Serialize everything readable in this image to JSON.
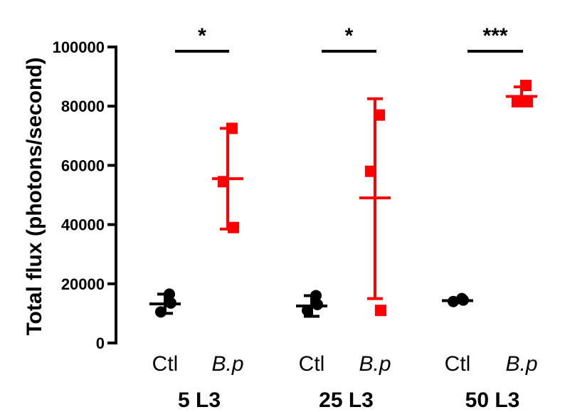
{
  "chart_data": {
    "type": "scatter",
    "ylabel": "Total flux (photons/second)",
    "xlabel": "",
    "ylim": [
      0,
      100000
    ],
    "yticks": [
      0,
      20000,
      40000,
      60000,
      80000,
      100000
    ],
    "ytick_labels": [
      "0",
      "20000",
      "40000",
      "60000",
      "80000",
      "100000"
    ],
    "groups": [
      {
        "label": "5 L3",
        "significance": "*",
        "conditions": [
          {
            "label": "Ctl",
            "italic": false,
            "color": "#000000",
            "marker": "circle",
            "points": [
              16500,
              10500,
              13500
            ],
            "mean": 13200,
            "error_low": 10000,
            "error_high": 16500
          },
          {
            "label": "B.p",
            "italic": true,
            "color": "#ff0000",
            "marker": "square",
            "points": [
              72500,
              54500,
              39000
            ],
            "mean": 55500,
            "error_low": 38500,
            "error_high": 72500
          }
        ]
      },
      {
        "label": "25 L3",
        "significance": "*",
        "conditions": [
          {
            "label": "Ctl",
            "italic": false,
            "color": "#000000",
            "marker": "circle",
            "points": [
              16000,
              11000,
              13000
            ],
            "mean": 12500,
            "error_low": 9000,
            "error_high": 16000
          },
          {
            "label": "B.p",
            "italic": true,
            "color": "#ff0000",
            "marker": "square",
            "points": [
              77000,
              58000,
              11000
            ],
            "mean": 49000,
            "error_low": 15000,
            "error_high": 82500
          }
        ]
      },
      {
        "label": "50 L3",
        "significance": "***",
        "conditions": [
          {
            "label": "Ctl",
            "italic": false,
            "color": "#000000",
            "marker": "circle",
            "points": [
              15000,
              14000,
              14500
            ],
            "mean": 14300,
            "error_low": 13600,
            "error_high": 15000
          },
          {
            "label": "B.p",
            "italic": true,
            "color": "#ff0000",
            "marker": "square",
            "points": [
              87000,
              81500,
              81500
            ],
            "mean": 83300,
            "error_low": 80500,
            "error_high": 86500
          }
        ]
      }
    ]
  }
}
